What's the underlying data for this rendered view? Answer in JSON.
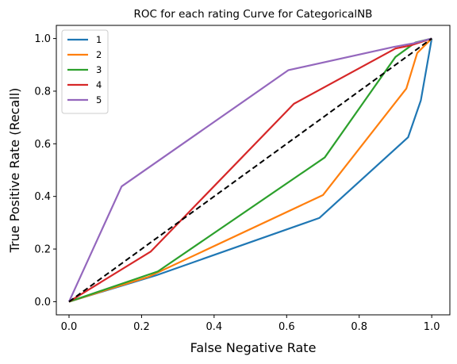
{
  "chart_data": {
    "type": "line",
    "title": "ROC for each rating Curve for CategoricalNB",
    "xlabel": "False Negative Rate",
    "ylabel": "True Positive Rate (Recall)",
    "xlim": [
      -0.035,
      1.05
    ],
    "ylim": [
      -0.05,
      1.05
    ],
    "xticks": [
      0.0,
      0.2,
      0.4,
      0.6,
      0.8,
      1.0
    ],
    "yticks": [
      0.0,
      0.2,
      0.4,
      0.6,
      0.8,
      1.0
    ],
    "xtick_labels": [
      "0.0",
      "0.2",
      "0.4",
      "0.6",
      "0.8",
      "1.0"
    ],
    "ytick_labels": [
      "0.0",
      "0.2",
      "0.4",
      "0.6",
      "0.8",
      "1.0"
    ],
    "grid": false,
    "legend_position": "top-left",
    "series": [
      {
        "name": "1",
        "color": "#1f77b4",
        "x": [
          0.0,
          0.24,
          0.69,
          0.935,
          0.97,
          1.0
        ],
        "y": [
          0.0,
          0.1,
          0.318,
          0.625,
          0.765,
          1.0
        ]
      },
      {
        "name": "2",
        "color": "#ff7f0e",
        "x": [
          0.0,
          0.22,
          0.7,
          0.93,
          0.96,
          1.0
        ],
        "y": [
          0.0,
          0.095,
          0.405,
          0.81,
          0.945,
          1.0
        ]
      },
      {
        "name": "3",
        "color": "#2ca02c",
        "x": [
          0.0,
          0.245,
          0.705,
          0.9,
          0.955,
          1.0
        ],
        "y": [
          0.0,
          0.115,
          0.548,
          0.93,
          0.985,
          1.0
        ]
      },
      {
        "name": "4",
        "color": "#d62728",
        "x": [
          0.0,
          0.225,
          0.62,
          0.9,
          0.945,
          1.0
        ],
        "y": [
          0.0,
          0.19,
          0.752,
          0.962,
          0.975,
          1.0
        ]
      },
      {
        "name": "5",
        "color": "#9467bd",
        "x": [
          0.0,
          0.145,
          0.605,
          0.895,
          0.95,
          1.0
        ],
        "y": [
          0.0,
          0.438,
          0.88,
          0.968,
          0.982,
          1.0
        ]
      }
    ],
    "reference_line": {
      "x": [
        0.0,
        1.0
      ],
      "y": [
        0.0,
        1.0
      ],
      "color": "#000000",
      "style": "dashed"
    }
  }
}
